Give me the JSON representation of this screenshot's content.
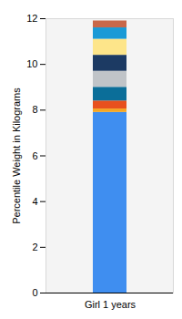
{
  "chart_data": {
    "type": "bar",
    "categories": [
      "Girl 1 years"
    ],
    "ylabel": "Percentile Weight in Kilograms",
    "series": [
      {
        "color": "#3f8ef0",
        "values": [
          7.9
        ]
      },
      {
        "color": "#f5a623",
        "values": [
          0.15
        ]
      },
      {
        "color": "#e8501e",
        "values": [
          0.35
        ]
      },
      {
        "color": "#0b6e99",
        "values": [
          0.6
        ]
      },
      {
        "color": "#c0c4c8",
        "values": [
          0.7
        ]
      },
      {
        "color": "#1c3a63",
        "values": [
          0.7
        ]
      },
      {
        "color": "#fde58a",
        "values": [
          0.7
        ]
      },
      {
        "color": "#1a9ad6",
        "values": [
          0.5
        ]
      },
      {
        "color": "#c8684a",
        "values": [
          0.3
        ]
      }
    ],
    "stacked": true,
    "ylim": [
      0,
      12
    ],
    "yticks": [
      0,
      2,
      4,
      6,
      8,
      10,
      12
    ],
    "grid": false
  }
}
